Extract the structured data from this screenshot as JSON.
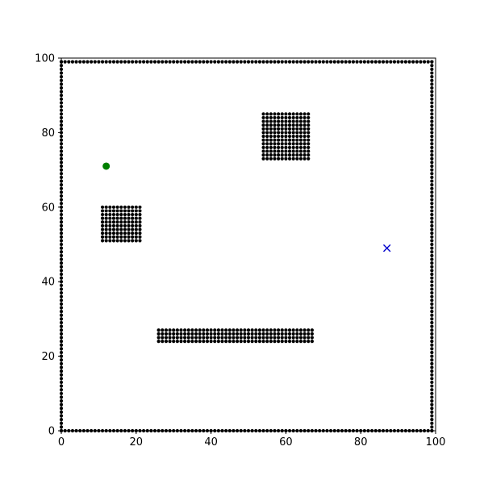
{
  "chart_data": {
    "type": "scatter",
    "title": "",
    "xlabel": "",
    "ylabel": "",
    "xlim": [
      0,
      100
    ],
    "ylim": [
      0,
      100
    ],
    "grid": false,
    "xticks": [
      0,
      20,
      40,
      60,
      80,
      100
    ],
    "yticks": [
      0,
      20,
      40,
      60,
      80,
      100
    ],
    "obstacle_color": "#000000",
    "series": [
      {
        "marker": "dot",
        "color": "#000000",
        "blocks": [
          {
            "x_from": 0,
            "x_to": 99,
            "x_step": 1,
            "y_from": 0,
            "y_to": 0,
            "y_step": 1
          },
          {
            "x_from": 0,
            "x_to": 99,
            "x_step": 1,
            "y_from": 99,
            "y_to": 99,
            "y_step": 1
          },
          {
            "x_from": 0,
            "x_to": 0,
            "x_step": 1,
            "y_from": 0,
            "y_to": 99,
            "y_step": 1
          },
          {
            "x_from": 99,
            "x_to": 99,
            "x_step": 1,
            "y_from": 0,
            "y_to": 99,
            "y_step": 1
          },
          {
            "x_from": 11,
            "x_to": 21,
            "x_step": 1,
            "y_from": 51,
            "y_to": 60,
            "y_step": 1
          },
          {
            "x_from": 54,
            "x_to": 66,
            "x_step": 1,
            "y_from": 73,
            "y_to": 85,
            "y_step": 1
          },
          {
            "x_from": 26,
            "x_to": 67,
            "x_step": 1,
            "y_from": 24,
            "y_to": 27,
            "y_step": 1
          }
        ]
      },
      {
        "marker": "circle",
        "color": "#008000",
        "points": [
          {
            "x": 12,
            "y": 71
          }
        ]
      },
      {
        "marker": "x",
        "color": "#0000cc",
        "points": [
          {
            "x": 87,
            "y": 49
          }
        ]
      }
    ]
  }
}
